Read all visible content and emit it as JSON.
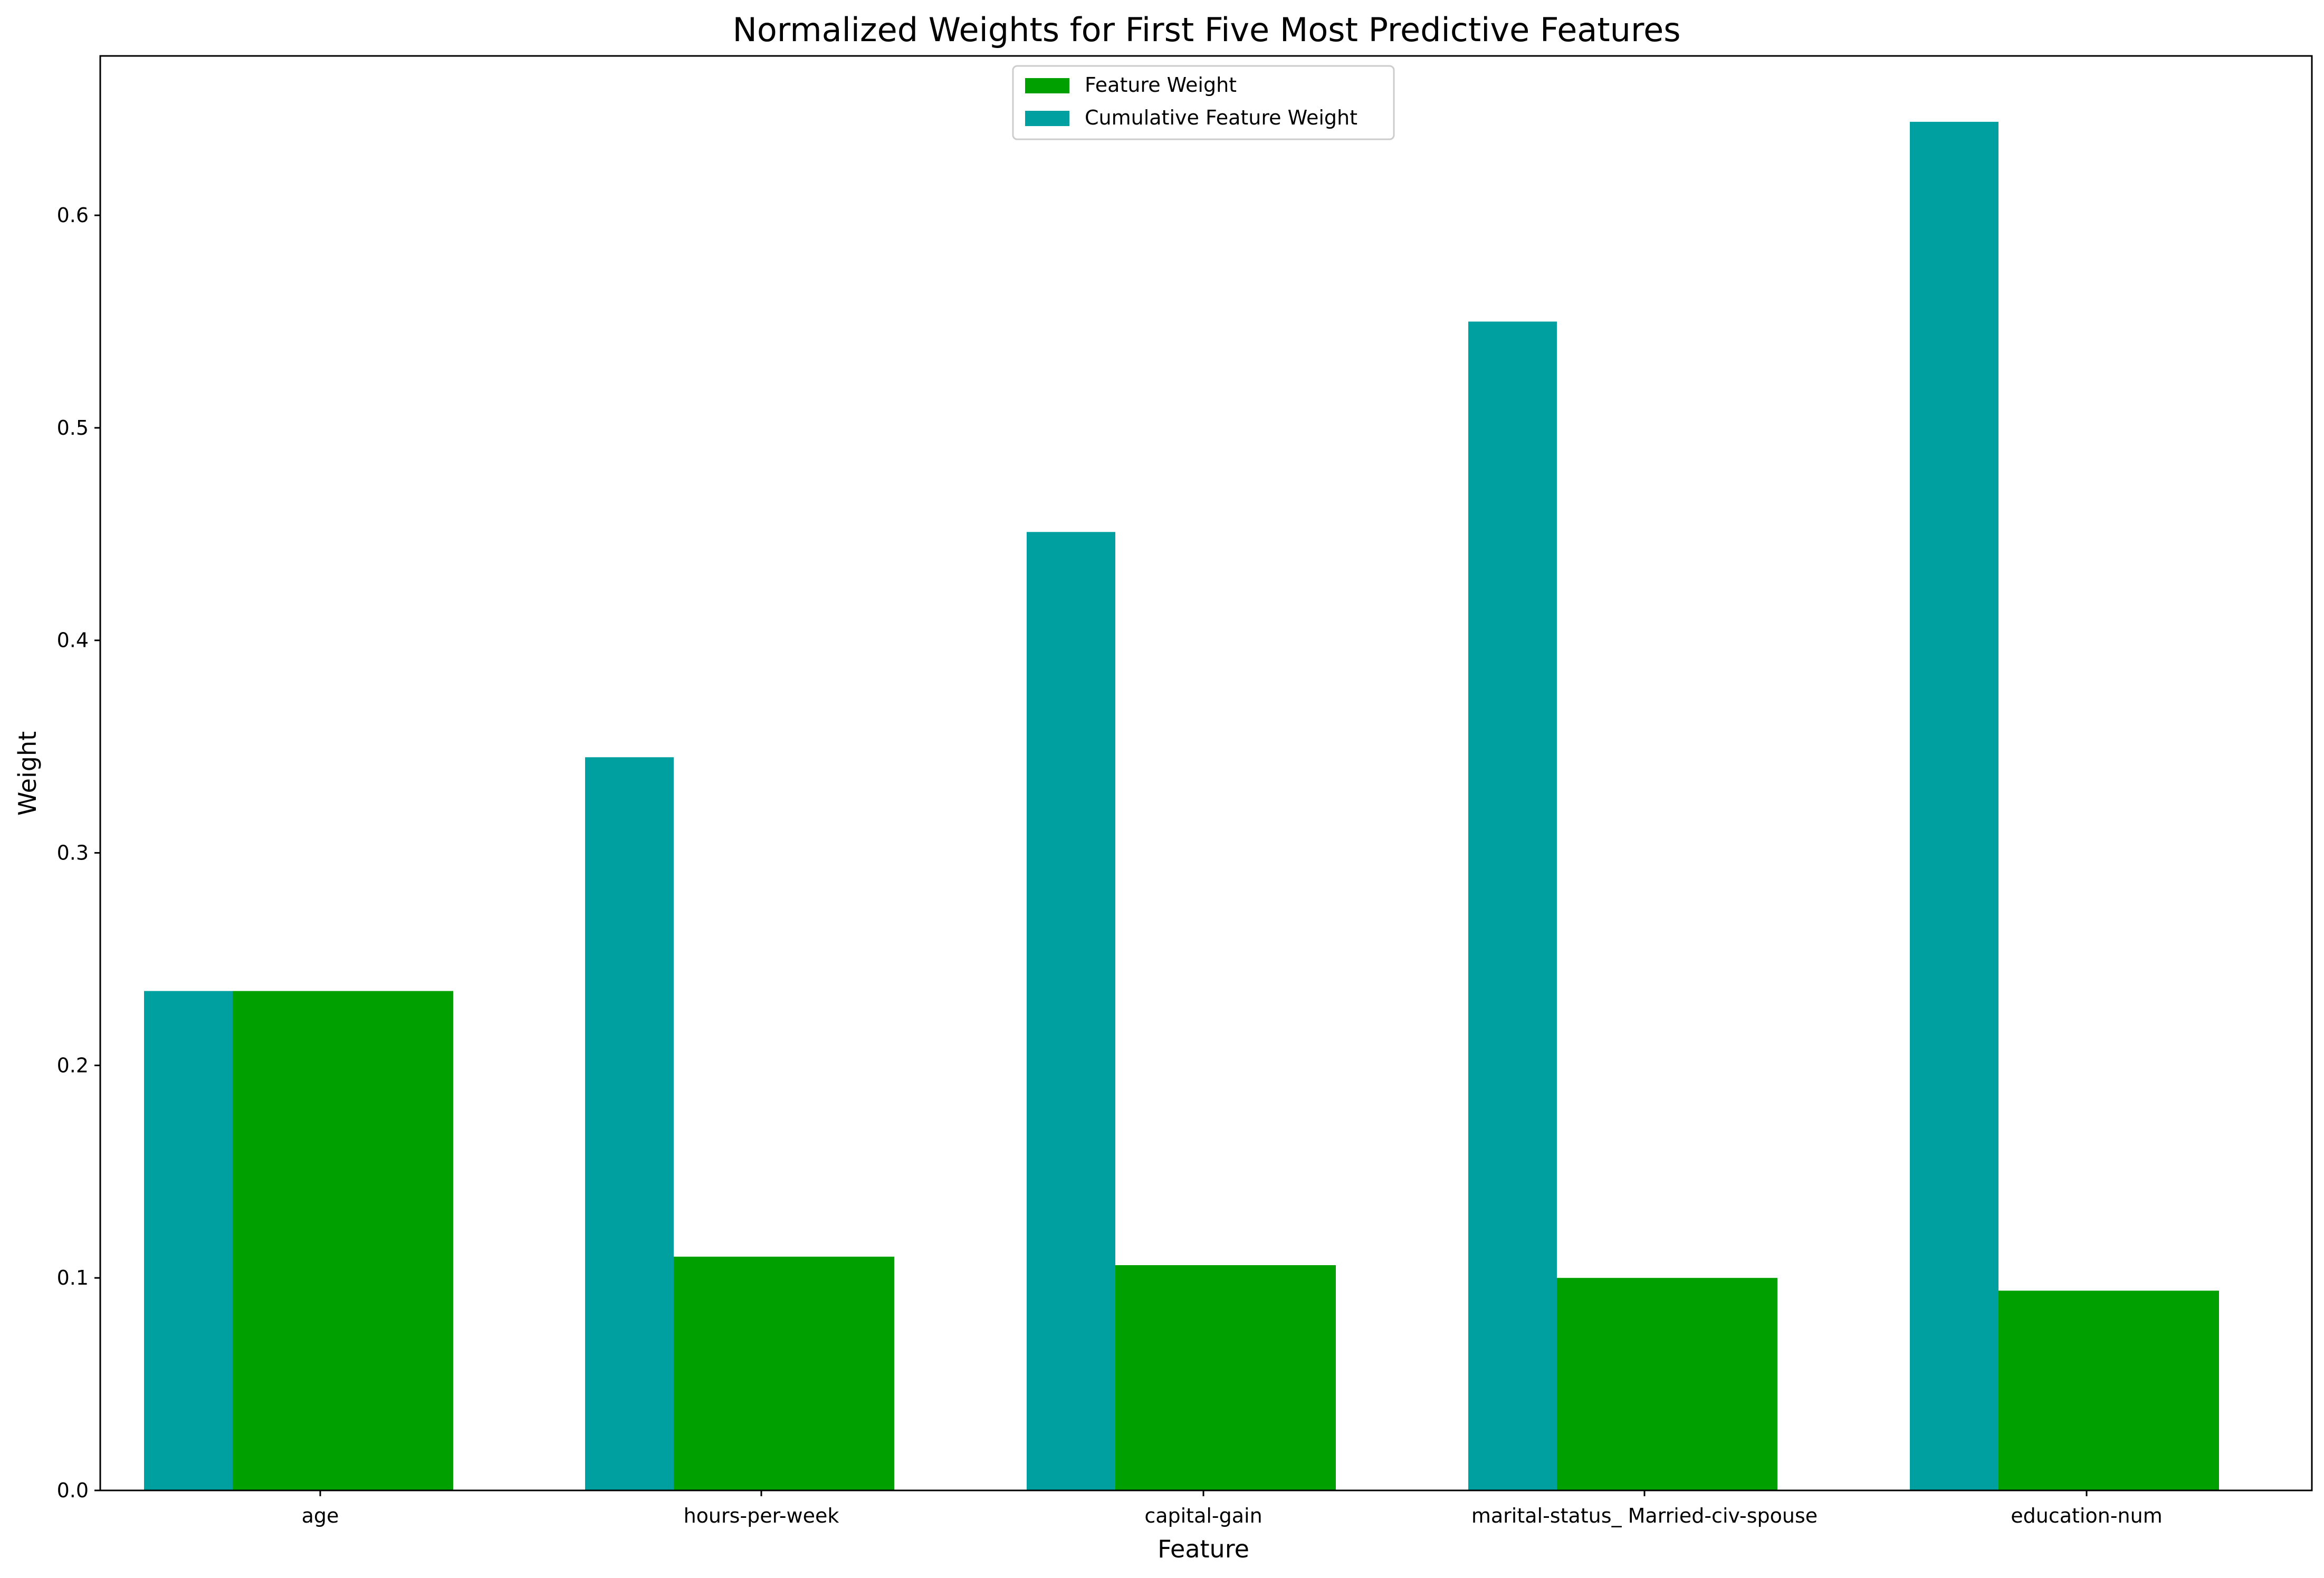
{
  "chart_data": {
    "type": "bar",
    "title": "Normalized Weights for First Five Most Predictive Features",
    "xlabel": "Feature",
    "ylabel": "Weight",
    "categories": [
      "age",
      "hours-per-week",
      "capital-gain",
      "marital-status_ Married-civ-spouse",
      "education-num"
    ],
    "series": [
      {
        "name": "Feature Weight",
        "color": "#00a000",
        "values": [
          0.235,
          0.11,
          0.106,
          0.1,
          0.094
        ]
      },
      {
        "name": "Cumulative Feature Weight",
        "color": "#00a0a0",
        "values": [
          0.235,
          0.345,
          0.451,
          0.55,
          0.644
        ]
      }
    ],
    "ylim": [
      0,
      0.675
    ],
    "yticks": [
      "0.0",
      "0.1",
      "0.2",
      "0.3",
      "0.4",
      "0.5",
      "0.6"
    ],
    "grid": false,
    "legend_position": "top-center"
  }
}
